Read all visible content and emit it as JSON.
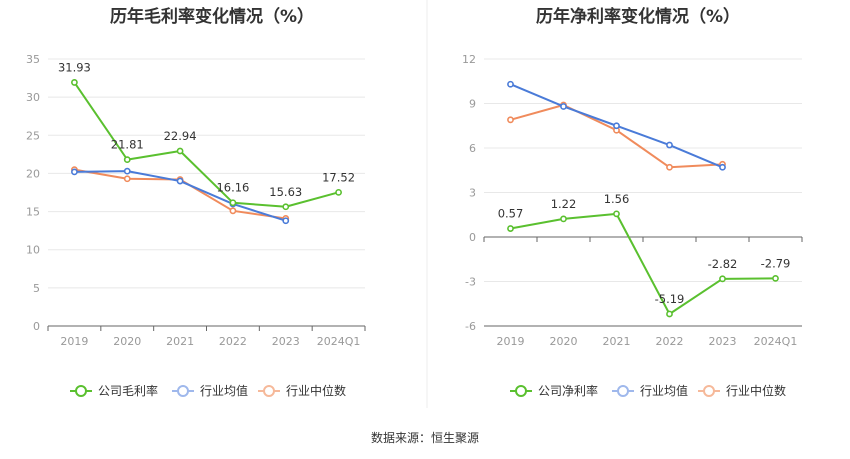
{
  "source": "数据来源：恒生聚源",
  "chart_data": [
    {
      "type": "line",
      "title": "历年毛利率变化情况（%）",
      "categories": [
        "2019",
        "2020",
        "2021",
        "2022",
        "2023",
        "2024Q1"
      ],
      "ylim": [
        0,
        35
      ],
      "yticks": [
        0,
        5,
        10,
        15,
        20,
        25,
        30,
        35
      ],
      "ytick_labels": [
        "0",
        "5",
        "10",
        "15",
        "20",
        "25",
        "30",
        "35"
      ],
      "grid": true,
      "legend_position": "bottom",
      "series": [
        {
          "name": "公司毛利率",
          "color": "#5ac02f",
          "values": [
            31.93,
            21.81,
            22.94,
            16.16,
            15.63,
            17.52
          ],
          "labels": [
            "31.93",
            "21.81",
            "22.94",
            "16.16",
            "15.63",
            "17.52"
          ]
        },
        {
          "name": "行业均值",
          "color": "#4a7bd8",
          "values": [
            20.2,
            20.3,
            19.0,
            16.0,
            13.8,
            null
          ]
        },
        {
          "name": "行业中位数",
          "color": "#f08b5c",
          "values": [
            20.5,
            19.3,
            19.2,
            15.1,
            14.1,
            null
          ]
        }
      ]
    },
    {
      "type": "line",
      "title": "历年净利率变化情况（%）",
      "categories": [
        "2019",
        "2020",
        "2021",
        "2022",
        "2023",
        "2024Q1"
      ],
      "ylim": [
        -6,
        12
      ],
      "yticks": [
        -6,
        -3,
        0,
        3,
        6,
        9,
        12
      ],
      "ytick_labels": [
        "-6",
        "-3",
        "0",
        "3",
        "6",
        "9",
        "12"
      ],
      "grid": true,
      "legend_position": "bottom",
      "series": [
        {
          "name": "公司净利率",
          "color": "#5ac02f",
          "values": [
            0.57,
            1.22,
            1.56,
            -5.19,
            -2.82,
            -2.79
          ],
          "labels": [
            "0.57",
            "1.22",
            "1.56",
            "-5.19",
            "-2.82",
            "-2.79"
          ]
        },
        {
          "name": "行业均值",
          "color": "#4a7bd8",
          "values": [
            10.3,
            8.8,
            7.5,
            6.2,
            4.7,
            null
          ]
        },
        {
          "name": "行业中位数",
          "color": "#f08b5c",
          "values": [
            7.9,
            8.9,
            7.2,
            4.7,
            4.9,
            null
          ]
        }
      ]
    }
  ]
}
